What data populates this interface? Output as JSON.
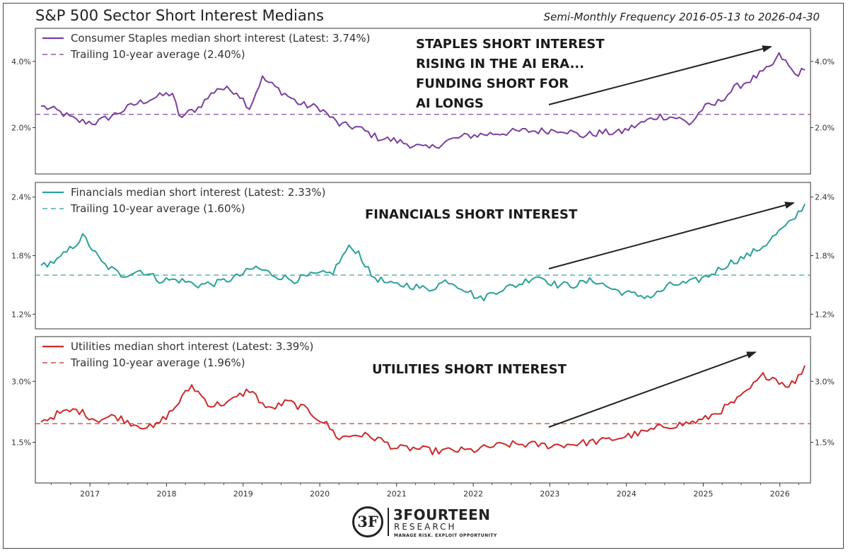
{
  "header": {
    "title": "S&P 500 Sector Short Interest Medians",
    "subtitle": "Semi-Monthly Frequency 2016-05-13 to 2026-04-30"
  },
  "logo": {
    "mark": "3F",
    "name": "3FOURTEEN",
    "sub": "RESEARCH",
    "tagline": "MANAGE RISK. EXPLOIT OPPORTUNITY"
  },
  "chart_data": {
    "type": "line",
    "x_range": [
      "2016-05-13",
      "2026-04-30"
    ],
    "x_ticks": [
      "2017",
      "2018",
      "2019",
      "2020",
      "2021",
      "2022",
      "2023",
      "2024",
      "2025",
      "2026"
    ],
    "panels": [
      {
        "name": "staples",
        "color": "#7b3f9e",
        "legend_series": "Consumer Staples median short interest (Latest: 3.74%)",
        "legend_avg": "Trailing 10-year average (2.40%)",
        "avg": 2.4,
        "ylim": [
          0.6,
          5.0
        ],
        "y_ticks": [
          "4.0%",
          "2.0%"
        ],
        "y_tick_values": [
          4.0,
          2.0
        ],
        "annotation": [
          "STAPLES SHORT INTEREST",
          "RISING IN THE AI ERA...",
          "FUNDING SHORT FOR",
          " AI LONGS"
        ],
        "anchors": [
          [
            "2016-05-13",
            2.65
          ],
          [
            "2016-08-01",
            2.5
          ],
          [
            "2016-11-01",
            2.2
          ],
          [
            "2017-02-01",
            2.15
          ],
          [
            "2017-05-01",
            2.4
          ],
          [
            "2017-08-01",
            2.7
          ],
          [
            "2017-11-01",
            2.9
          ],
          [
            "2018-02-01",
            3.05
          ],
          [
            "2018-03-01",
            2.3
          ],
          [
            "2018-06-01",
            2.6
          ],
          [
            "2018-09-01",
            3.2
          ],
          [
            "2018-12-01",
            3.1
          ],
          [
            "2019-02-01",
            2.6
          ],
          [
            "2019-04-01",
            3.5
          ],
          [
            "2019-07-01",
            3.1
          ],
          [
            "2019-10-01",
            2.7
          ],
          [
            "2020-01-01",
            2.6
          ],
          [
            "2020-04-01",
            2.1
          ],
          [
            "2020-07-01",
            2.0
          ],
          [
            "2020-10-01",
            1.7
          ],
          [
            "2021-01-01",
            1.6
          ],
          [
            "2021-04-01",
            1.45
          ],
          [
            "2021-06-01",
            1.35
          ],
          [
            "2021-09-01",
            1.6
          ],
          [
            "2021-12-01",
            1.75
          ],
          [
            "2022-03-01",
            1.8
          ],
          [
            "2022-06-01",
            1.85
          ],
          [
            "2022-09-01",
            1.9
          ],
          [
            "2022-12-01",
            1.9
          ],
          [
            "2023-03-01",
            1.95
          ],
          [
            "2023-06-01",
            1.75
          ],
          [
            "2023-09-01",
            1.85
          ],
          [
            "2023-12-01",
            1.85
          ],
          [
            "2024-03-01",
            2.1
          ],
          [
            "2024-06-01",
            2.35
          ],
          [
            "2024-09-01",
            2.3
          ],
          [
            "2024-11-01",
            2.1
          ],
          [
            "2025-01-01",
            2.6
          ],
          [
            "2025-03-01",
            2.7
          ],
          [
            "2025-06-01",
            3.2
          ],
          [
            "2025-09-01",
            3.5
          ],
          [
            "2025-11-15",
            3.8
          ],
          [
            "2026-01-01",
            4.2
          ],
          [
            "2026-02-01",
            3.95
          ],
          [
            "2026-03-15",
            3.6
          ],
          [
            "2026-04-30",
            3.74
          ]
        ]
      },
      {
        "name": "financials",
        "color": "#2aa198",
        "legend_series": "Financials median short interest (Latest: 2.33%)",
        "legend_avg": "Trailing 10-year average (1.60%)",
        "avg": 1.6,
        "ylim": [
          1.05,
          2.55
        ],
        "y_ticks": [
          "2.4%",
          "1.8%",
          "1.2%"
        ],
        "y_tick_values": [
          2.4,
          1.8,
          1.2
        ],
        "annotation": [
          "FINANCIALS SHORT INTEREST"
        ],
        "anchors": [
          [
            "2016-05-13",
            1.7
          ],
          [
            "2016-08-01",
            1.75
          ],
          [
            "2016-10-15",
            1.9
          ],
          [
            "2016-12-01",
            2.0
          ],
          [
            "2017-03-01",
            1.72
          ],
          [
            "2017-06-01",
            1.6
          ],
          [
            "2017-09-01",
            1.65
          ],
          [
            "2017-12-01",
            1.55
          ],
          [
            "2018-03-01",
            1.55
          ],
          [
            "2018-06-01",
            1.5
          ],
          [
            "2018-09-01",
            1.52
          ],
          [
            "2018-12-01",
            1.58
          ],
          [
            "2019-03-01",
            1.68
          ],
          [
            "2019-06-01",
            1.6
          ],
          [
            "2019-09-01",
            1.55
          ],
          [
            "2019-12-01",
            1.6
          ],
          [
            "2020-03-01",
            1.62
          ],
          [
            "2020-05-15",
            1.88
          ],
          [
            "2020-07-01",
            1.85
          ],
          [
            "2020-09-01",
            1.6
          ],
          [
            "2020-12-01",
            1.5
          ],
          [
            "2021-03-01",
            1.5
          ],
          [
            "2021-06-01",
            1.45
          ],
          [
            "2021-09-01",
            1.55
          ],
          [
            "2021-12-01",
            1.45
          ],
          [
            "2022-02-01",
            1.35
          ],
          [
            "2022-05-01",
            1.45
          ],
          [
            "2022-08-01",
            1.5
          ],
          [
            "2022-11-01",
            1.6
          ],
          [
            "2023-02-01",
            1.5
          ],
          [
            "2023-05-01",
            1.5
          ],
          [
            "2023-08-01",
            1.55
          ],
          [
            "2023-11-01",
            1.45
          ],
          [
            "2024-02-01",
            1.4
          ],
          [
            "2024-05-01",
            1.38
          ],
          [
            "2024-08-01",
            1.5
          ],
          [
            "2024-11-01",
            1.52
          ],
          [
            "2025-02-01",
            1.6
          ],
          [
            "2025-05-01",
            1.72
          ],
          [
            "2025-08-01",
            1.8
          ],
          [
            "2025-10-15",
            1.9
          ],
          [
            "2026-01-01",
            2.05
          ],
          [
            "2026-03-01",
            2.15
          ],
          [
            "2026-04-30",
            2.33
          ]
        ]
      },
      {
        "name": "utilities",
        "color": "#cc2a2a",
        "legend_series": "Utilities median short interest (Latest: 3.39%)",
        "legend_avg": "Trailing 10-year average (1.96%)",
        "avg": 1.96,
        "ylim": [
          0.5,
          4.1
        ],
        "y_ticks": [
          "3.0%",
          "1.5%"
        ],
        "y_tick_values": [
          3.0,
          1.5
        ],
        "annotation": [
          "UTILITIES SHORT INTEREST"
        ],
        "anchors": [
          [
            "2016-05-13",
            2.0
          ],
          [
            "2016-08-01",
            2.2
          ],
          [
            "2016-11-01",
            2.3
          ],
          [
            "2017-02-01",
            2.05
          ],
          [
            "2017-05-01",
            2.15
          ],
          [
            "2017-08-01",
            1.95
          ],
          [
            "2017-11-01",
            1.85
          ],
          [
            "2018-02-01",
            2.3
          ],
          [
            "2018-05-01",
            2.9
          ],
          [
            "2018-08-01",
            2.4
          ],
          [
            "2018-11-01",
            2.5
          ],
          [
            "2019-02-01",
            2.8
          ],
          [
            "2019-05-01",
            2.3
          ],
          [
            "2019-08-01",
            2.5
          ],
          [
            "2019-11-01",
            2.3
          ],
          [
            "2020-02-01",
            1.95
          ],
          [
            "2020-04-01",
            1.6
          ],
          [
            "2020-07-01",
            1.7
          ],
          [
            "2020-10-01",
            1.6
          ],
          [
            "2021-01-01",
            1.35
          ],
          [
            "2021-04-01",
            1.35
          ],
          [
            "2021-07-01",
            1.28
          ],
          [
            "2021-10-01",
            1.3
          ],
          [
            "2022-01-01",
            1.3
          ],
          [
            "2022-04-01",
            1.4
          ],
          [
            "2022-07-01",
            1.45
          ],
          [
            "2022-10-01",
            1.45
          ],
          [
            "2023-01-01",
            1.42
          ],
          [
            "2023-04-01",
            1.45
          ],
          [
            "2023-07-01",
            1.5
          ],
          [
            "2023-10-01",
            1.55
          ],
          [
            "2024-01-01",
            1.65
          ],
          [
            "2024-04-01",
            1.75
          ],
          [
            "2024-07-01",
            1.9
          ],
          [
            "2024-10-01",
            1.95
          ],
          [
            "2025-01-01",
            2.05
          ],
          [
            "2025-04-01",
            2.3
          ],
          [
            "2025-07-01",
            2.6
          ],
          [
            "2025-10-15",
            3.15
          ],
          [
            "2025-12-01",
            3.1
          ],
          [
            "2026-02-01",
            2.9
          ],
          [
            "2026-03-20",
            3.0
          ],
          [
            "2026-04-30",
            3.39
          ]
        ]
      }
    ]
  }
}
